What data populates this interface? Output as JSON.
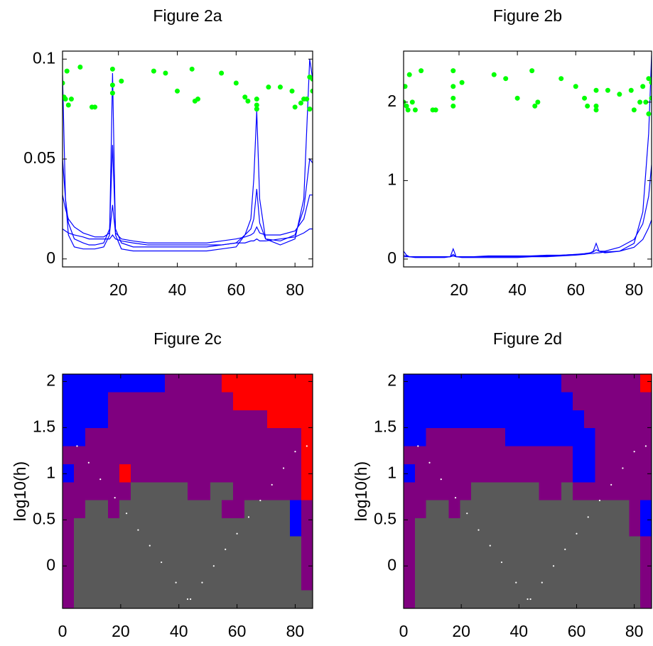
{
  "chart_data": [
    {
      "type": "line",
      "title": "Figure 2a",
      "x": [
        1,
        2,
        3,
        5,
        8,
        10,
        12,
        15,
        17,
        18,
        19,
        21,
        25,
        30,
        35,
        40,
        45,
        50,
        55,
        60,
        63,
        65,
        66,
        67,
        68,
        70,
        75,
        80,
        83,
        85,
        86
      ],
      "xlim": [
        1,
        86
      ],
      "xticks": [
        20,
        40,
        60,
        80
      ],
      "ylim": [
        -0.004,
        0.104
      ],
      "yticks": [
        0,
        0.05,
        0.1
      ],
      "series": [
        {
          "type": "line",
          "color": "#0000ff",
          "values": [
            0.092,
            0.03,
            0.012,
            0.006,
            0.005,
            0.005,
            0.005,
            0.006,
            0.012,
            0.093,
            0.012,
            0.005,
            0.004,
            0.004,
            0.004,
            0.004,
            0.004,
            0.004,
            0.005,
            0.006,
            0.012,
            0.02,
            0.04,
            0.074,
            0.03,
            0.01,
            0.007,
            0.01,
            0.03,
            0.1,
            0.09
          ]
        },
        {
          "type": "line",
          "color": "#0000ff",
          "values": [
            0.05,
            0.03,
            0.018,
            0.01,
            0.008,
            0.007,
            0.007,
            0.008,
            0.015,
            0.057,
            0.015,
            0.008,
            0.006,
            0.006,
            0.006,
            0.006,
            0.006,
            0.006,
            0.007,
            0.008,
            0.012,
            0.015,
            0.02,
            0.035,
            0.018,
            0.01,
            0.009,
            0.012,
            0.025,
            0.05,
            0.048
          ]
        },
        {
          "type": "line",
          "color": "#0000ff",
          "values": [
            0.032,
            0.025,
            0.02,
            0.016,
            0.013,
            0.012,
            0.011,
            0.011,
            0.013,
            0.027,
            0.013,
            0.01,
            0.009,
            0.008,
            0.008,
            0.008,
            0.008,
            0.008,
            0.009,
            0.01,
            0.011,
            0.012,
            0.013,
            0.016,
            0.013,
            0.012,
            0.012,
            0.014,
            0.02,
            0.032,
            0.032
          ]
        },
        {
          "type": "line",
          "color": "#0000ff",
          "values": [
            0.015,
            0.014,
            0.013,
            0.012,
            0.011,
            0.01,
            0.01,
            0.01,
            0.01,
            0.012,
            0.01,
            0.009,
            0.008,
            0.007,
            0.007,
            0.007,
            0.007,
            0.007,
            0.007,
            0.008,
            0.008,
            0.009,
            0.009,
            0.01,
            0.009,
            0.009,
            0.01,
            0.011,
            0.013,
            0.015,
            0.015
          ]
        },
        {
          "type": "scatter",
          "color": "#00ff00",
          "x": [
            1,
            1.5,
            2,
            2.5,
            3,
            4,
            7,
            11,
            12,
            18,
            18,
            18,
            21,
            32,
            36,
            40,
            45,
            46,
            47,
            55,
            60,
            63,
            64,
            67,
            67,
            67,
            71,
            75,
            79,
            80,
            82,
            83,
            84,
            85,
            85,
            86,
            86
          ],
          "values": [
            0.088,
            0.081,
            0.08,
            0.094,
            0.077,
            0.08,
            0.096,
            0.076,
            0.076,
            0.095,
            0.087,
            0.083,
            0.089,
            0.094,
            0.093,
            0.084,
            0.095,
            0.079,
            0.08,
            0.093,
            0.088,
            0.081,
            0.079,
            0.08,
            0.077,
            0.075,
            0.086,
            0.086,
            0.084,
            0.076,
            0.078,
            0.08,
            0.08,
            0.091,
            0.075,
            0.09,
            0.084
          ]
        }
      ]
    },
    {
      "type": "line",
      "title": "Figure 2b",
      "x": [
        1,
        2,
        3,
        5,
        8,
        10,
        12,
        15,
        17,
        18,
        19,
        21,
        25,
        30,
        35,
        40,
        45,
        50,
        55,
        60,
        63,
        65,
        66,
        67,
        68,
        70,
        75,
        80,
        83,
        85,
        86
      ],
      "xlim": [
        1,
        86
      ],
      "xticks": [
        20,
        40,
        60,
        80
      ],
      "ylim": [
        -0.1,
        2.65
      ],
      "yticks": [
        0,
        1,
        2
      ],
      "series": [
        {
          "type": "line",
          "color": "#0000ff",
          "values": [
            0.1,
            0.05,
            0.03,
            0.02,
            0.02,
            0.02,
            0.02,
            0.02,
            0.03,
            0.13,
            0.03,
            0.02,
            0.02,
            0.02,
            0.02,
            0.02,
            0.03,
            0.03,
            0.04,
            0.05,
            0.06,
            0.08,
            0.1,
            0.2,
            0.1,
            0.08,
            0.1,
            0.2,
            0.6,
            1.6,
            2.6
          ]
        },
        {
          "type": "line",
          "color": "#0000ff",
          "values": [
            0.05,
            0.04,
            0.03,
            0.03,
            0.03,
            0.03,
            0.03,
            0.03,
            0.03,
            0.06,
            0.03,
            0.03,
            0.03,
            0.03,
            0.03,
            0.03,
            0.04,
            0.04,
            0.05,
            0.06,
            0.07,
            0.08,
            0.09,
            0.12,
            0.1,
            0.1,
            0.15,
            0.25,
            0.45,
            0.8,
            1.2
          ]
        },
        {
          "type": "line",
          "color": "#0000ff",
          "values": [
            0.03,
            0.03,
            0.03,
            0.03,
            0.03,
            0.03,
            0.03,
            0.03,
            0.03,
            0.04,
            0.03,
            0.03,
            0.03,
            0.04,
            0.04,
            0.04,
            0.04,
            0.05,
            0.05,
            0.06,
            0.06,
            0.07,
            0.07,
            0.08,
            0.08,
            0.09,
            0.1,
            0.15,
            0.25,
            0.4,
            0.5
          ]
        },
        {
          "type": "scatter",
          "color": "#00ff00",
          "x": [
            1,
            1.5,
            2,
            2.5,
            3,
            4,
            5,
            7,
            11,
            12,
            18,
            18,
            18,
            18,
            21,
            32,
            36,
            40,
            45,
            46,
            47,
            55,
            60,
            63,
            64,
            67,
            67,
            67,
            71,
            75,
            79,
            80,
            82,
            83,
            84,
            85,
            85,
            86,
            86
          ],
          "values": [
            2.0,
            2.2,
            1.95,
            1.9,
            2.35,
            2.0,
            1.9,
            2.4,
            1.9,
            1.9,
            2.4,
            2.2,
            2.05,
            1.95,
            2.25,
            2.35,
            2.3,
            2.05,
            2.4,
            1.95,
            2.0,
            2.3,
            2.2,
            2.05,
            1.95,
            2.15,
            1.95,
            1.9,
            2.15,
            2.1,
            2.15,
            1.9,
            2.0,
            2.2,
            2.0,
            2.3,
            1.85,
            2.25,
            2.05
          ]
        }
      ]
    },
    {
      "type": "heatmap",
      "title": "Figure 2c",
      "y_label": "log10(h)",
      "xlim": [
        0,
        86
      ],
      "xticks": [
        0,
        20,
        40,
        60,
        80
      ],
      "ylim": [
        -0.46,
        2.08
      ],
      "yticks": [
        0,
        0.5,
        1,
        1.5,
        2
      ],
      "colors": [
        "#595959",
        "#7f007f",
        "#0000ff",
        "#ff0000"
      ],
      "z": [
        [
          2,
          2,
          2,
          2,
          2,
          2,
          2,
          2,
          2,
          1,
          1,
          1,
          1,
          1,
          3,
          3,
          3,
          3,
          3,
          3,
          3,
          3
        ],
        [
          2,
          2,
          2,
          2,
          1,
          1,
          1,
          1,
          1,
          1,
          1,
          1,
          1,
          1,
          1,
          3,
          3,
          3,
          3,
          3,
          3,
          3
        ],
        [
          2,
          2,
          2,
          2,
          1,
          1,
          1,
          1,
          1,
          1,
          1,
          1,
          1,
          1,
          1,
          1,
          1,
          1,
          3,
          3,
          3,
          3
        ],
        [
          2,
          2,
          1,
          1,
          1,
          1,
          1,
          1,
          1,
          1,
          1,
          1,
          1,
          1,
          1,
          1,
          1,
          1,
          1,
          1,
          1,
          3
        ],
        [
          1,
          1,
          1,
          1,
          1,
          1,
          1,
          1,
          1,
          1,
          1,
          1,
          1,
          1,
          1,
          1,
          1,
          1,
          1,
          1,
          1,
          3
        ],
        [
          2,
          1,
          1,
          1,
          1,
          3,
          1,
          1,
          1,
          1,
          1,
          1,
          1,
          1,
          1,
          1,
          1,
          1,
          1,
          1,
          1,
          3
        ],
        [
          1,
          1,
          1,
          1,
          1,
          1,
          0,
          0,
          0,
          0,
          0,
          1,
          1,
          0,
          0,
          1,
          1,
          1,
          1,
          1,
          1,
          3
        ],
        [
          1,
          1,
          0,
          0,
          1,
          0,
          0,
          0,
          0,
          0,
          0,
          0,
          0,
          0,
          1,
          1,
          0,
          0,
          0,
          0,
          2,
          1
        ],
        [
          1,
          0,
          0,
          0,
          0,
          0,
          0,
          0,
          0,
          0,
          0,
          0,
          0,
          0,
          0,
          0,
          0,
          0,
          0,
          0,
          2,
          1
        ],
        [
          1,
          0,
          0,
          0,
          0,
          0,
          0,
          0,
          0,
          0,
          0,
          0,
          0,
          0,
          0,
          0,
          0,
          0,
          0,
          0,
          0,
          1
        ],
        [
          1,
          0,
          0,
          0,
          0,
          0,
          0,
          0,
          0,
          0,
          0,
          0,
          0,
          0,
          0,
          0,
          0,
          0,
          0,
          0,
          0,
          1
        ],
        [
          1,
          0,
          0,
          0,
          0,
          0,
          0,
          0,
          0,
          0,
          0,
          0,
          0,
          0,
          0,
          0,
          0,
          0,
          0,
          0,
          0,
          1
        ],
        [
          1,
          0,
          0,
          0,
          0,
          0,
          0,
          0,
          0,
          0,
          0,
          0,
          0,
          0,
          0,
          0,
          0,
          0,
          0,
          0,
          0,
          0
        ]
      ],
      "series": [
        {
          "type": "scatter",
          "color": "#ffffff",
          "x": [
            5,
            9,
            13,
            18,
            22,
            26,
            30,
            34,
            39,
            43,
            44,
            48,
            52,
            56,
            60,
            64,
            68,
            72,
            76,
            80,
            84
          ],
          "values": [
            1.3,
            1.12,
            0.94,
            0.74,
            0.57,
            0.39,
            0.22,
            0.04,
            -0.18,
            -0.36,
            -0.36,
            -0.18,
            0.0,
            0.18,
            0.35,
            0.53,
            0.71,
            0.88,
            1.06,
            1.24,
            1.3
          ]
        }
      ]
    },
    {
      "type": "heatmap",
      "title": "Figure 2d",
      "y_label": "log10(h)",
      "xlim": [
        0,
        86
      ],
      "xticks": [
        0,
        20,
        40,
        60,
        80
      ],
      "ylim": [
        -0.46,
        2.08
      ],
      "yticks": [
        0,
        0.5,
        1,
        1.5,
        2
      ],
      "colors": [
        "#595959",
        "#7f007f",
        "#0000ff",
        "#ff0000"
      ],
      "z": [
        [
          2,
          2,
          2,
          2,
          2,
          2,
          2,
          2,
          2,
          2,
          2,
          2,
          2,
          2,
          1,
          1,
          1,
          1,
          1,
          1,
          1,
          3
        ],
        [
          2,
          2,
          2,
          2,
          2,
          2,
          2,
          2,
          2,
          2,
          2,
          2,
          2,
          2,
          2,
          1,
          1,
          1,
          1,
          1,
          1,
          1
        ],
        [
          2,
          2,
          2,
          2,
          2,
          2,
          2,
          2,
          2,
          2,
          2,
          2,
          2,
          2,
          2,
          2,
          1,
          1,
          1,
          1,
          1,
          1
        ],
        [
          2,
          2,
          1,
          1,
          1,
          1,
          1,
          1,
          1,
          2,
          2,
          2,
          2,
          2,
          2,
          2,
          2,
          1,
          1,
          1,
          1,
          1
        ],
        [
          1,
          1,
          1,
          1,
          1,
          1,
          1,
          1,
          1,
          1,
          1,
          1,
          1,
          1,
          1,
          2,
          2,
          1,
          1,
          1,
          1,
          1
        ],
        [
          2,
          1,
          1,
          1,
          1,
          1,
          1,
          1,
          1,
          1,
          1,
          1,
          1,
          1,
          1,
          2,
          2,
          1,
          1,
          1,
          1,
          1
        ],
        [
          1,
          1,
          1,
          1,
          1,
          1,
          0,
          0,
          0,
          0,
          0,
          0,
          1,
          1,
          0,
          1,
          1,
          1,
          1,
          1,
          1,
          1
        ],
        [
          1,
          1,
          0,
          0,
          1,
          0,
          0,
          0,
          0,
          0,
          0,
          0,
          0,
          0,
          0,
          0,
          0,
          0,
          0,
          0,
          1,
          2
        ],
        [
          1,
          0,
          0,
          0,
          0,
          0,
          0,
          0,
          0,
          0,
          0,
          0,
          0,
          0,
          0,
          0,
          0,
          0,
          0,
          0,
          1,
          2
        ],
        [
          1,
          0,
          0,
          0,
          0,
          0,
          0,
          0,
          0,
          0,
          0,
          0,
          0,
          0,
          0,
          0,
          0,
          0,
          0,
          0,
          0,
          1
        ],
        [
          1,
          0,
          0,
          0,
          0,
          0,
          0,
          0,
          0,
          0,
          0,
          0,
          0,
          0,
          0,
          0,
          0,
          0,
          0,
          0,
          0,
          1
        ],
        [
          1,
          0,
          0,
          0,
          0,
          0,
          0,
          0,
          0,
          0,
          0,
          0,
          0,
          0,
          0,
          0,
          0,
          0,
          0,
          0,
          0,
          1
        ],
        [
          1,
          0,
          0,
          0,
          0,
          0,
          0,
          0,
          0,
          0,
          0,
          0,
          0,
          0,
          0,
          0,
          0,
          0,
          0,
          0,
          0,
          1
        ]
      ],
      "series": [
        {
          "type": "scatter",
          "color": "#ffffff",
          "x": [
            5,
            9,
            13,
            18,
            22,
            26,
            30,
            34,
            39,
            43,
            44,
            48,
            52,
            56,
            60,
            64,
            68,
            72,
            76,
            80,
            84
          ],
          "values": [
            1.3,
            1.12,
            0.94,
            0.74,
            0.57,
            0.39,
            0.22,
            0.04,
            -0.18,
            -0.36,
            -0.36,
            -0.18,
            0.0,
            0.18,
            0.35,
            0.53,
            0.71,
            0.88,
            1.06,
            1.24,
            1.3
          ]
        }
      ]
    }
  ]
}
